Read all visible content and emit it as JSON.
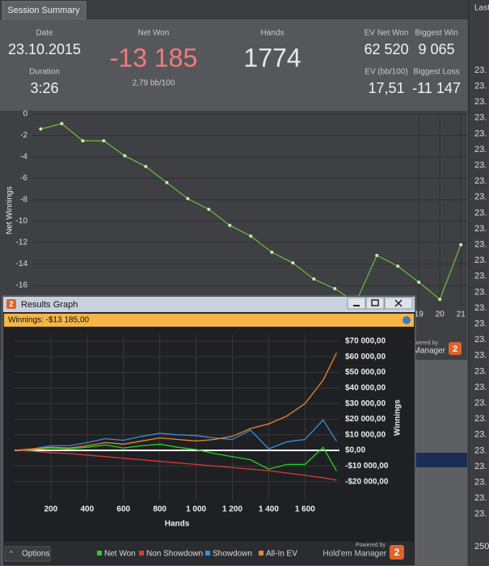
{
  "tabs": [
    "Session Summary"
  ],
  "side_tab": "Last",
  "summary": {
    "date_label": "Date",
    "date": "23.10.2015",
    "duration_label": "Duration",
    "duration": "3:26",
    "net_won_label": "Net Won",
    "net_won": "-13 185",
    "bb_rate": "2,79 bb/100",
    "hands_label": "Hands",
    "hands": "1774",
    "ev_net_won_label": "EV Net Won",
    "ev_net_won": "62 520",
    "biggest_win_label": "Biggest Win",
    "biggest_win": "9 065",
    "ev_bb_label": "EV (bb/100)",
    "ev_bb": "17,51",
    "biggest_loss_label": "Biggest Loss",
    "biggest_loss": "-11 147"
  },
  "side_rows": [
    "23.",
    "23.",
    "23.",
    "23.",
    "23.",
    "23.",
    "23.",
    "23.",
    "23.",
    "23.",
    "23.",
    "23.",
    "23.",
    "23.",
    "23.",
    "23.",
    "23.",
    "23.",
    "23.",
    "23.",
    "23.",
    "23.",
    "23.",
    "23.",
    "23.",
    "23.",
    "23.",
    "23.",
    "23."
  ],
  "side_footer": "250",
  "background_brand": {
    "powered_by": "Powered by",
    "brand": "Manager"
  },
  "window": {
    "title": "Results Graph",
    "winnings": "Winnings: -$13 185,00",
    "powered_by": "Powered by",
    "brand": "Hold'em Manager",
    "options": "Options",
    "logo": "2"
  },
  "chart_data": [
    {
      "type": "line",
      "y_label": "Net Winnings",
      "color": "#67c23a",
      "grid": true,
      "x": [
        1,
        2,
        3,
        4,
        5,
        6,
        7,
        8,
        9,
        10,
        11,
        12,
        13,
        14,
        15,
        16,
        17,
        18,
        19,
        20,
        21
      ],
      "values": [
        -1.4,
        -0.9,
        -2.5,
        -2.5,
        -3.9,
        -4.9,
        -6.4,
        -7.9,
        -8.9,
        -10.4,
        -11.4,
        -12.9,
        -13.9,
        -15.4,
        -16.3,
        -17.6,
        -13.2,
        -14.2,
        -15.7,
        -17.3,
        -12.2
      ],
      "xlim": [
        0.6,
        21.3
      ],
      "xticks": [
        19,
        20,
        21
      ],
      "ylim": [
        -18,
        0
      ],
      "yticks": [
        0,
        -2,
        -4,
        -6,
        -8,
        -10,
        -12,
        -14,
        -16
      ]
    },
    {
      "type": "line",
      "x_label": "Hands",
      "y_label": "Winnings",
      "grid": true,
      "x": [
        0,
        100,
        200,
        300,
        400,
        500,
        600,
        700,
        800,
        900,
        1000,
        1100,
        1200,
        1300,
        1400,
        1500,
        1600,
        1700,
        1774
      ],
      "series": [
        {
          "name": "Net Won",
          "color": "#22d322",
          "values": [
            0,
            500,
            1500,
            1000,
            2000,
            3500,
            1500,
            3000,
            4000,
            2000,
            500,
            -2000,
            -4000,
            -6000,
            -12000,
            -9000,
            -9000,
            2000,
            -13185
          ]
        },
        {
          "name": "Non Showdown",
          "color": "#d83a3a",
          "values": [
            0,
            -500,
            -1500,
            -2000,
            -3000,
            -4000,
            -5000,
            -6000,
            -7000,
            -8000,
            -9000,
            -10000,
            -11000,
            -12000,
            -13000,
            -14500,
            -16000,
            -17500,
            -19000
          ]
        },
        {
          "name": "Showdown",
          "color": "#3c8ed8",
          "values": [
            0,
            1000,
            3000,
            3000,
            5000,
            7500,
            6500,
            9000,
            11000,
            10000,
            9500,
            8000,
            7000,
            13000,
            1000,
            5500,
            7000,
            19500,
            5815
          ]
        },
        {
          "name": "All-In EV",
          "color": "#e8892e",
          "values": [
            0,
            1000,
            2000,
            1500,
            3000,
            5000,
            4000,
            6000,
            8000,
            7000,
            6000,
            7000,
            9000,
            14000,
            17000,
            22000,
            30000,
            45000,
            62520
          ]
        }
      ],
      "xlim": [
        0,
        1790
      ],
      "xticks": [
        200,
        400,
        600,
        800,
        {
          "value": 1000,
          "label": "1 000"
        },
        {
          "value": 1200,
          "label": "1 200"
        },
        {
          "value": 1400,
          "label": "1 400"
        },
        {
          "value": 1600,
          "label": "1 600"
        }
      ],
      "ylim": [
        -32000,
        74000
      ],
      "yticks": [
        {
          "value": -20000,
          "label": "-$20 000,00"
        },
        {
          "value": -10000,
          "label": "-$10 000,00"
        },
        {
          "value": 0,
          "label": "$0,00"
        },
        {
          "value": 10000,
          "label": "$10 000,00"
        },
        {
          "value": 20000,
          "label": "$20 000,00"
        },
        {
          "value": 30000,
          "label": "$30 000,00"
        },
        {
          "value": 40000,
          "label": "$40 000,00"
        },
        {
          "value": 50000,
          "label": "$50 000,00"
        },
        {
          "value": 60000,
          "label": "$60 000,00"
        },
        {
          "value": 70000,
          "label": "$70 000,00"
        }
      ]
    }
  ]
}
